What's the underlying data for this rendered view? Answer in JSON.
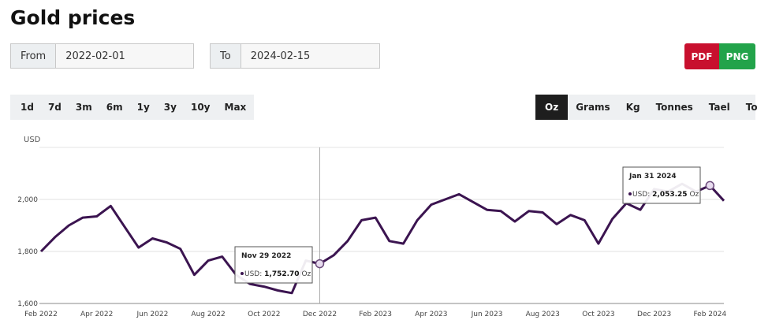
{
  "page": {
    "title": "Gold prices",
    "from_label": "From",
    "from_value": "2022-02-01",
    "to_label": "To",
    "to_value": "2024-02-15",
    "export_buttons": [
      "PDF",
      "PNG"
    ],
    "range_buttons": [
      "1d",
      "7d",
      "3m",
      "6m",
      "1y",
      "3y",
      "10y",
      "Max"
    ],
    "unit_buttons": [
      "Oz",
      "Grams",
      "Kg",
      "Tonnes",
      "Tael",
      "Tola"
    ]
  },
  "chart_data": {
    "type": "line",
    "y_axis_label": "USD",
    "color": "#3b1450",
    "grid": true,
    "categories": [
      "Feb 2022",
      null,
      null,
      null,
      "Apr 2022",
      null,
      null,
      null,
      "Jun 2022",
      null,
      null,
      null,
      "Aug 2022",
      null,
      null,
      null,
      "Oct 2022",
      null,
      null,
      null,
      "Dec 2022",
      null,
      null,
      null,
      "Feb 2023",
      null,
      null,
      null,
      "Apr 2023",
      null,
      null,
      null,
      "Jun 2023",
      null,
      null,
      null,
      "Aug 2023",
      null,
      null,
      null,
      "Oct 2023",
      null,
      null,
      null,
      "Dec 2023",
      null,
      null,
      null,
      "Feb 2024",
      null
    ],
    "values": [
      1800,
      1855,
      1900,
      1930,
      1935,
      1975,
      1895,
      1815,
      1850,
      1835,
      1810,
      1710,
      1765,
      1780,
      1710,
      1675,
      1665,
      1650,
      1640,
      1765,
      1752.7,
      1785,
      1840,
      1920,
      1930,
      1840,
      1830,
      1920,
      1980,
      2000,
      2020,
      1990,
      1960,
      1955,
      1915,
      1955,
      1950,
      1905,
      1940,
      1920,
      1830,
      1925,
      1985,
      1960,
      2040,
      2030,
      2060,
      2030,
      2053.25,
      1995
    ],
    "ylim": [
      1600,
      2200
    ],
    "yticks": [
      {
        "value": 1600,
        "label": "1,600"
      },
      {
        "value": 1800,
        "label": "1,800"
      },
      {
        "value": 2000,
        "label": "2,000"
      }
    ],
    "tooltips": [
      {
        "date": "Nov 29 2022",
        "prefix": "USD:",
        "value": 1752.7,
        "value_label": "1,752.70",
        "unit": "Oz"
      },
      {
        "date": "Jan 31 2024",
        "prefix": "USD:",
        "value": 2053.25,
        "value_label": "2,053.25",
        "unit": "Oz"
      }
    ]
  }
}
